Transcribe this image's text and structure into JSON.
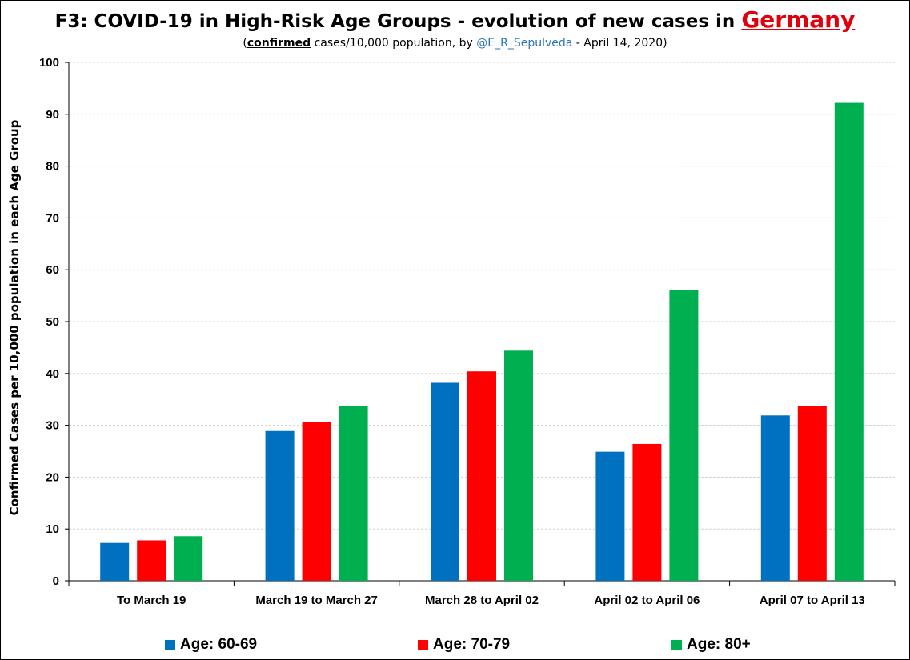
{
  "title": {
    "main": "F3: COVID-19 in High-Risk Age Groups - evolution of new cases in",
    "country": "Germany"
  },
  "subtitle": {
    "open": "(",
    "emph": "confirmed",
    "mid": " cases/10,000 population, by ",
    "handle": "@E_R_Sepulveda",
    "tail": " - April 14, 2020)"
  },
  "colors": {
    "series_60_69": "#0070c0",
    "series_70_79": "#ff0000",
    "series_80_plus": "#00b050",
    "country": "#e0000b",
    "handle": "#2e75b6"
  },
  "chart_data": {
    "type": "bar",
    "title": "F3: COVID-19 in High-Risk Age Groups - evolution of new cases in Germany",
    "ylabel": "Confirmed Cases per 10,000 population in each Age Group",
    "xlabel": "",
    "ylim": [
      0,
      100
    ],
    "yticks": [
      0,
      10,
      20,
      30,
      40,
      50,
      60,
      70,
      80,
      90,
      100
    ],
    "grid": true,
    "legend_position": "bottom",
    "categories": [
      "To March 19",
      "March 19 to March 27",
      "March 28 to April 02",
      "April 02 to April 06",
      "April 07 to April 13"
    ],
    "series": [
      {
        "name": "Age: 60-69",
        "color": "#0070c0",
        "values": [
          7.3,
          28.9,
          38.2,
          24.9,
          31.9
        ]
      },
      {
        "name": "Age: 70-79",
        "color": "#ff0000",
        "values": [
          7.8,
          30.6,
          40.4,
          26.4,
          33.7
        ]
      },
      {
        "name": "Age: 80+",
        "color": "#00b050",
        "values": [
          8.6,
          33.7,
          44.4,
          56.1,
          92.2
        ]
      }
    ]
  }
}
